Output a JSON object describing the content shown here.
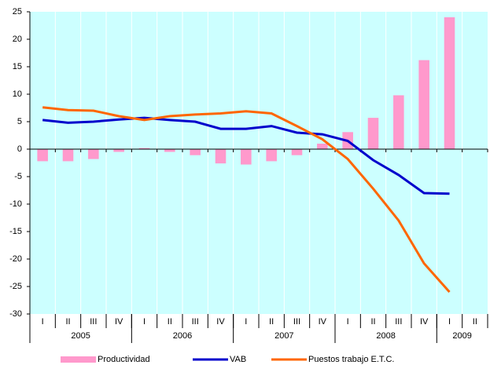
{
  "chart_data": {
    "type": "bar-line",
    "categories": [
      "I",
      "II",
      "III",
      "IV",
      "I",
      "II",
      "III",
      "IV",
      "I",
      "II",
      "III",
      "IV",
      "I",
      "II",
      "III",
      "IV",
      "I",
      "II"
    ],
    "year_groups": [
      {
        "label": "2005",
        "quarters": 4
      },
      {
        "label": "2006",
        "quarters": 4
      },
      {
        "label": "2007",
        "quarters": 4
      },
      {
        "label": "2008",
        "quarters": 4
      },
      {
        "label": "2009",
        "quarters": 2
      }
    ],
    "series": [
      {
        "name": "Productividad",
        "kind": "bar",
        "color": "#ff99cc",
        "values": [
          -2.2,
          -2.2,
          -1.8,
          -0.5,
          0.2,
          -0.5,
          -1.1,
          -2.6,
          -2.8,
          -2.2,
          -1.1,
          1.0,
          3.1,
          5.7,
          9.8,
          16.2,
          24.0,
          null
        ]
      },
      {
        "name": "VAB",
        "kind": "line",
        "color": "#0000cc",
        "values": [
          5.3,
          4.8,
          5.0,
          5.4,
          5.7,
          5.3,
          5.0,
          3.7,
          3.7,
          4.2,
          3.0,
          2.7,
          1.5,
          -2.0,
          -4.7,
          -8.0,
          -8.1,
          null
        ]
      },
      {
        "name": "Puestos trabajo E.T.C.",
        "kind": "line",
        "color": "#ff6600",
        "values": [
          7.6,
          7.1,
          7.0,
          6.0,
          5.3,
          6.0,
          6.3,
          6.5,
          6.9,
          6.5,
          4.2,
          1.8,
          -1.8,
          -7.2,
          -13.0,
          -20.8,
          -26.0,
          null
        ]
      }
    ],
    "ylim": [
      -30,
      25
    ],
    "yticks": [
      -30,
      -25,
      -20,
      -15,
      -10,
      -5,
      0,
      5,
      10,
      15,
      20,
      25
    ],
    "background": "#ccffff",
    "grid": true,
    "legend": "bottom"
  }
}
